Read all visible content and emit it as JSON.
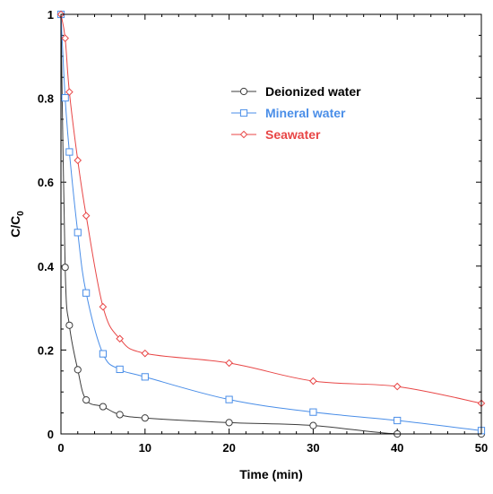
{
  "chart_data": {
    "type": "line",
    "xlabel": "Time (min)",
    "ylabel_main": "C/C",
    "ylabel_sub": "0",
    "xlim": [
      0,
      50
    ],
    "ylim": [
      0,
      1
    ],
    "xticks": [
      0,
      10,
      20,
      30,
      40,
      50
    ],
    "yticks": [
      0,
      0.2,
      0.4,
      0.6,
      0.8,
      1
    ],
    "ytick_labels": [
      "0",
      "0.2",
      "0.4",
      "0.6",
      "0.8",
      "1"
    ],
    "legend_position": "upper-right",
    "series": [
      {
        "name": "Deionized water",
        "color": "#3c3c3c",
        "marker": "circle",
        "x": [
          0,
          0.5,
          1,
          2,
          3,
          5,
          7,
          10,
          20,
          30,
          40,
          50
        ],
        "y": [
          1.0,
          0.397,
          0.259,
          0.153,
          0.081,
          0.065,
          0.046,
          0.038,
          0.027,
          0.02,
          0.0,
          0.0
        ]
      },
      {
        "name": "Mineral water",
        "color": "#4a8ee8",
        "marker": "square",
        "x": [
          0,
          0.5,
          1,
          2,
          3,
          5,
          7,
          10,
          20,
          30,
          40,
          50
        ],
        "y": [
          1.0,
          0.801,
          0.672,
          0.48,
          0.336,
          0.191,
          0.154,
          0.136,
          0.082,
          0.052,
          0.032,
          0.008
        ]
      },
      {
        "name": "Seawater",
        "color": "#e84646",
        "marker": "diamond",
        "x": [
          0,
          0.5,
          1,
          2,
          3,
          5,
          7,
          10,
          20,
          30,
          40,
          50
        ],
        "y": [
          1.0,
          0.943,
          0.815,
          0.652,
          0.52,
          0.303,
          0.227,
          0.192,
          0.169,
          0.126,
          0.113,
          0.073
        ]
      }
    ]
  }
}
